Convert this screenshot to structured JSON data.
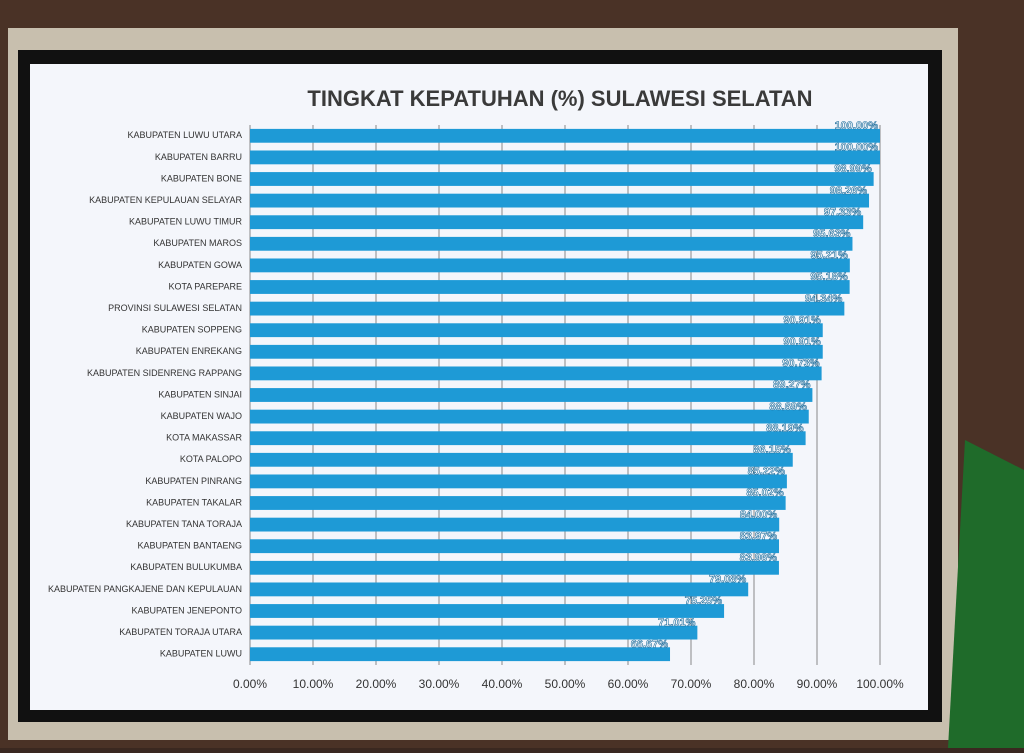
{
  "chart_data": {
    "type": "hbar",
    "title": "TINGKAT KEPATUHAN (%) SULAWESI SELATAN",
    "categories": [
      "KABUPATEN LUWU UTARA",
      "KABUPATEN BARRU",
      "KABUPATEN BONE",
      "KABUPATEN KEPULAUAN SELAYAR",
      "KABUPATEN LUWU TIMUR",
      "KABUPATEN MAROS",
      "KABUPATEN GOWA",
      "KOTA PAREPARE",
      "PROVINSI SULAWESI SELATAN",
      "KABUPATEN SOPPENG",
      "KABUPATEN ENREKANG",
      "KABUPATEN SIDENRENG RAPPANG",
      "KABUPATEN SINJAI",
      "KABUPATEN WAJO",
      "KOTA MAKASSAR",
      "KOTA PALOPO",
      "KABUPATEN PINRANG",
      "KABUPATEN TAKALAR",
      "KABUPATEN TANA TORAJA",
      "KABUPATEN BANTAENG",
      "KABUPATEN BULUKUMBA",
      "KABUPATEN PANGKAJENE DAN KEPULAUAN",
      "KABUPATEN JENEPONTO",
      "KABUPATEN TORAJA UTARA",
      "KABUPATEN LUWU"
    ],
    "values": [
      100,
      100,
      98.99,
      98.26,
      97.33,
      95.63,
      95.21,
      95.18,
      94.34,
      90.91,
      90.91,
      90.73,
      89.27,
      88.69,
      88.19,
      86.15,
      85.22,
      85.02,
      84,
      83.97,
      83.96,
      79.08,
      75.25,
      71.01,
      66.67
    ],
    "value_labels": [
      "100.00%",
      "100.00%",
      "98.99%",
      "98.26%",
      "97.33%",
      "95.63%",
      "95.21%",
      "95.18%",
      "94.34%",
      "90.91%",
      "90.91%",
      "90.73%",
      "89.27%",
      "88.69%",
      "88.19%",
      "86.15%",
      "85.22%",
      "85.02%",
      "84.00%",
      "83.97%",
      "83.96%",
      "79.08%",
      "75.25%",
      "71.01%",
      "66.67%"
    ],
    "color": "#1e9ad6",
    "xlim": [
      0,
      100
    ],
    "xticks": [
      {
        "value": 0,
        "label": "0.00%"
      },
      {
        "value": 10,
        "label": "10.00%"
      },
      {
        "value": 20,
        "label": "20.00%"
      },
      {
        "value": 30,
        "label": "30.00%"
      },
      {
        "value": 40,
        "label": "40.00%"
      },
      {
        "value": 50,
        "label": "50.00%"
      },
      {
        "value": 60,
        "label": "60.00%"
      },
      {
        "value": 70,
        "label": "70.00%"
      },
      {
        "value": 80,
        "label": "80.00%"
      },
      {
        "value": 90,
        "label": "90.00%"
      },
      {
        "value": 100,
        "label": "100.00%"
      }
    ],
    "grid": true
  }
}
